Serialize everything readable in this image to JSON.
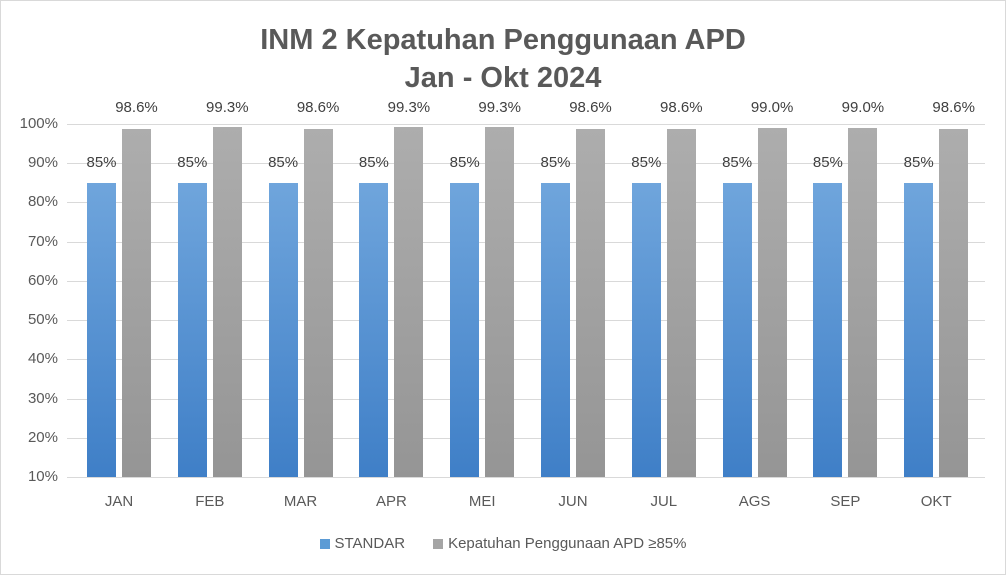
{
  "chart": {
    "title_line1": "INM 2 Kepatuhan Penggunaan APD",
    "title_line2": "Jan - Okt 2024",
    "colors": {
      "standar": "#5b9bd5",
      "kepatuhan": "#a5a5a5",
      "grid": "#d9d9d9",
      "text": "#595959"
    },
    "legend": [
      {
        "label": "STANDAR",
        "color": "#5b9bd5"
      },
      {
        "label": "Kepatuhan Penggunaan APD ≥85%",
        "color": "#a5a5a5"
      }
    ],
    "yticks": [
      "100%",
      "90%",
      "80%",
      "70%",
      "60%",
      "50%",
      "40%",
      "30%",
      "20%",
      "10%"
    ]
  },
  "chart_data": {
    "type": "bar",
    "title": "INM 2 Kepatuhan Penggunaan APD Jan - Okt 2024",
    "categories": [
      "JAN",
      "FEB",
      "MAR",
      "APR",
      "MEI",
      "JUN",
      "JUL",
      "AGS",
      "SEP",
      "OKT"
    ],
    "series": [
      {
        "name": "STANDAR",
        "values": [
          85,
          85,
          85,
          85,
          85,
          85,
          85,
          85,
          85,
          85
        ],
        "labels": [
          "85%",
          "85%",
          "85%",
          "85%",
          "85%",
          "85%",
          "85%",
          "85%",
          "85%",
          "85%"
        ]
      },
      {
        "name": "Kepatuhan Penggunaan APD ≥85%",
        "values": [
          98.6,
          99.3,
          98.6,
          99.3,
          99.3,
          98.6,
          98.6,
          99.0,
          99.0,
          98.6
        ],
        "labels": [
          "98.6%",
          "99.3%",
          "98.6%",
          "99.3%",
          "99.3%",
          "98.6%",
          "98.6%",
          "99.0%",
          "99.0%",
          "98.6%"
        ]
      }
    ],
    "xlabel": "",
    "ylabel": "",
    "ylim": [
      10,
      100
    ],
    "grid": true,
    "legend_position": "bottom"
  }
}
